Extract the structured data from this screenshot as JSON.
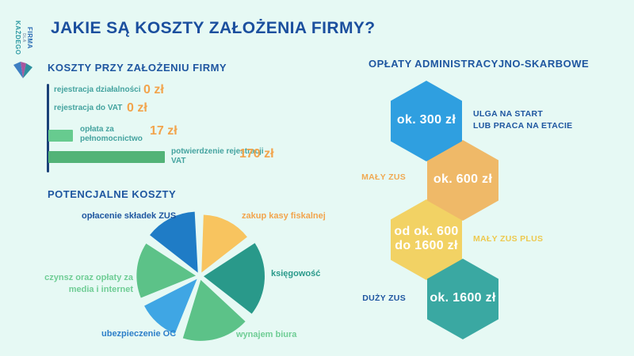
{
  "page": {
    "title": "JAKIE SĄ KOSZTY ZAŁOŻENIA FIRMY?"
  },
  "logo": {
    "word1": "FIRMA",
    "word2": "DLA",
    "word3": "KAŻDEGO"
  },
  "colors": {
    "background": "#E6F9F4",
    "title_navy": "#1B4F9E",
    "heading_blue": "#1E56A0",
    "bar_label_teal": "#44A39F",
    "value_orange": "#F2A44C",
    "axis_navy": "#1A4178",
    "bar_green_light": "#67CB8F",
    "bar_green": "#52B377"
  },
  "sections": {
    "bar_heading": "KOSZTY PRZY ZAŁOŻENIU FIRMY",
    "pie_heading": "POTENCJALNE KOSZTY",
    "hex_heading": "OPŁATY ADMINISTRACYJNO-SKARBOWE"
  },
  "chart_data": [
    {
      "type": "bar",
      "orientation": "horizontal",
      "title": "KOSZTY PRZY ZAŁOŻENIU FIRMY",
      "unit": "zł",
      "categories": [
        "rejestracja działalności",
        "rejestracja do VAT",
        "opłata za pełnomocnictwo",
        "potwierdzenie rejestracji VAT"
      ],
      "values": [
        0,
        0,
        17,
        170
      ],
      "value_labels": [
        "0 zł",
        "0 zł",
        "17 zł",
        "170 zł"
      ],
      "bar_colors": [
        "#67CB8F",
        "#67CB8F",
        "#67CB8F",
        "#52B377"
      ],
      "xlim": [
        0,
        170
      ],
      "grid": false
    },
    {
      "type": "pie",
      "title": "POTENCJALNE KOSZTY",
      "style": "exploded, gaps between slices, no numeric values shown",
      "slices": [
        {
          "label": "zakup kasy fiskalnej",
          "start_deg": 2,
          "end_deg": 52,
          "color": "#F8C45F",
          "label_color": "#F2A44C",
          "radius_factor": 0.95
        },
        {
          "label": "księgowość",
          "start_deg": 57,
          "end_deg": 128,
          "color": "#29998A",
          "label_color": "#29998A",
          "radius_factor": 1.0
        },
        {
          "label": "wynajem biura",
          "start_deg": 133,
          "end_deg": 197,
          "color": "#5CC288",
          "label_color": "#6FCD95",
          "radius_factor": 1.0
        },
        {
          "label": "ubezpieczenie OC",
          "start_deg": 202,
          "end_deg": 243,
          "color": "#3FA6E4",
          "label_color": "#2E7FC9",
          "radius_factor": 0.97
        },
        {
          "label": "czynsz oraz opłaty za media i internet",
          "start_deg": 248,
          "end_deg": 303,
          "color": "#5CC288",
          "label_color": "#6FCD95",
          "radius_factor": 0.97
        },
        {
          "label": "opłacenie składek ZUS",
          "start_deg": 308,
          "end_deg": 357,
          "color": "#1F7CC6",
          "label_color": "#1E56A0",
          "radius_factor": 1.0
        }
      ]
    }
  ],
  "hex_diagram": {
    "heading": "OPŁATY ADMINISTRACYJNO-SKARBOWE",
    "items": [
      {
        "value_lines": [
          "ok. 300 zł"
        ],
        "label_lines": [
          "ULGA NA START",
          "LUB PRACA NA ETACIE"
        ],
        "label_side": "right",
        "hex_color": "#2F9FE0",
        "label_color": "#1E56A0"
      },
      {
        "value_lines": [
          "ok. 600 zł"
        ],
        "label_lines": [
          "MAŁY ZUS"
        ],
        "label_side": "left",
        "hex_color": "#EFB968",
        "label_color": "#F0A952"
      },
      {
        "value_lines": [
          "od ok. 600",
          "do 1600 zł"
        ],
        "label_lines": [
          "MAŁY ZUS PLUS"
        ],
        "label_side": "right",
        "hex_color": "#F2D264",
        "label_color": "#EDC94F"
      },
      {
        "value_lines": [
          "ok. 1600 zł"
        ],
        "label_lines": [
          "DUŻY ZUS"
        ],
        "label_side": "left",
        "hex_color": "#3AA8A2",
        "label_color": "#1E56A0"
      }
    ]
  }
}
